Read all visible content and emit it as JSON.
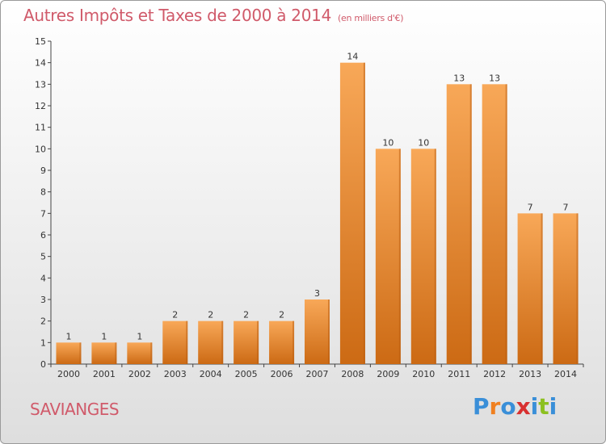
{
  "title": "Autres Impôts et Taxes de 2000 à 2014",
  "unit": "(en milliers d'€)",
  "commune": "SAVIANGES",
  "logo": "Proxiti",
  "colors": {
    "bar_light": "#f8a858",
    "bar_dark": "#cc6a14",
    "title": "#d05a6a",
    "logo": [
      "#3a8fd8",
      "#f08020",
      "#3a8fd8",
      "#d83030",
      "#3a8fd8",
      "#8cc020",
      "#3a8fd8"
    ]
  },
  "chart_data": {
    "type": "bar",
    "categories": [
      "2000",
      "2001",
      "2002",
      "2003",
      "2004",
      "2005",
      "2006",
      "2007",
      "2008",
      "2009",
      "2010",
      "2011",
      "2012",
      "2013",
      "2014"
    ],
    "values": [
      1,
      1,
      1,
      2,
      2,
      2,
      2,
      3,
      14,
      10,
      10,
      13,
      13,
      7,
      7
    ],
    "title": "Autres Impôts et Taxes de 2000 à 2014",
    "ylim": [
      0,
      15
    ],
    "yticks": [
      0,
      1,
      2,
      3,
      4,
      5,
      6,
      7,
      8,
      9,
      10,
      11,
      12,
      13,
      14,
      15
    ],
    "grid": false,
    "data_labels": true
  }
}
